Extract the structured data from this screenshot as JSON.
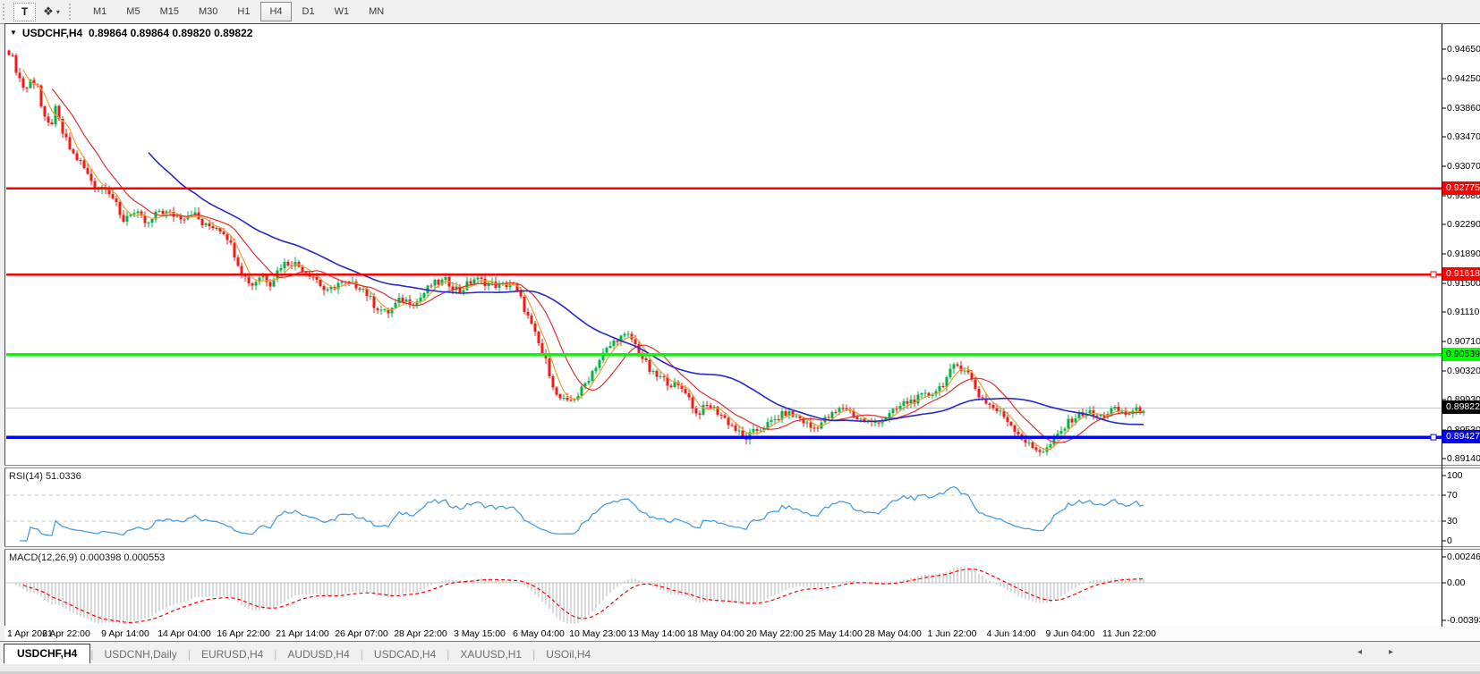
{
  "toolbar": {
    "text_tool": "T",
    "cursor_tool_icon": "crosshair-tool",
    "timeframes": [
      "M1",
      "M5",
      "M15",
      "M30",
      "H1",
      "H4",
      "D1",
      "W1",
      "MN"
    ],
    "active_timeframe": "H4"
  },
  "chart": {
    "title": {
      "collapse_icon": "▼",
      "symbol": "USDCHF,H4",
      "ohlc": "0.89864 0.89864 0.89820 0.89822"
    },
    "price_scale_labels": [
      "0.94650",
      "0.94250",
      "0.93860",
      "0.93470",
      "0.93070",
      "0.92680",
      "0.92290",
      "0.91890",
      "0.91500",
      "0.91110",
      "0.90710",
      "0.90320",
      "0.89930",
      "0.89530",
      "0.89140"
    ],
    "badges": [
      {
        "text": "0.92775",
        "bg": "#ff0000",
        "fg": "#ffffff",
        "price": 0.92775
      },
      {
        "text": "0.91618",
        "bg": "#ff0000",
        "fg": "#ffffff",
        "price": 0.91618
      },
      {
        "text": "0.90539",
        "bg": "#00ff00",
        "fg": "#000000",
        "price": 0.90539
      },
      {
        "text": "0.89822",
        "bg": "#000000",
        "fg": "#ffffff",
        "price": 0.89822
      },
      {
        "text": "0.89427",
        "bg": "#0000ff",
        "fg": "#ffffff",
        "price": 0.89427
      }
    ],
    "rsi_panel": {
      "label": "RSI(14)",
      "value": "51.0336",
      "scale": [
        "100",
        "70",
        "30",
        "0"
      ]
    },
    "macd_panel": {
      "label": "MACD(12,26,9)",
      "values": "0.000398 0.000553",
      "scale": [
        "0.002465",
        "0.00",
        "-0.003935"
      ]
    },
    "date_labels": [
      "1 Apr 2021",
      "6 Apr 22:00",
      "9 Apr 14:00",
      "14 Apr 04:00",
      "16 Apr 22:00",
      "21 Apr 14:00",
      "26 Apr 07:00",
      "28 Apr 22:00",
      "3 May 15:00",
      "6 May 04:00",
      "10 May 23:00",
      "13 May 14:00",
      "18 May 04:00",
      "20 May 22:00",
      "25 May 14:00",
      "28 May 04:00",
      "1 Jun 22:00",
      "4 Jun 14:00",
      "9 Jun 04:00",
      "11 Jun 22:00"
    ]
  },
  "chart_data": {
    "type": "candlestick",
    "symbol": "USDCHF",
    "timeframe": "H4",
    "title": "USDCHF,H4",
    "current_quote": {
      "open": 0.89864,
      "high": 0.89864,
      "low": 0.8982,
      "close": 0.89822
    },
    "x_range": [
      "1 Apr 2021",
      "15 Jun 2021"
    ],
    "y_axis_range": [
      0.891,
      0.948
    ],
    "legend_position": "none",
    "grid": false,
    "horizontal_lines": [
      {
        "price": 0.92775,
        "color": "#ff0000",
        "width": 2.5,
        "handles": []
      },
      {
        "price": 0.91618,
        "color": "#ff0000",
        "width": 2.5,
        "handles": [
          "right"
        ]
      },
      {
        "price": 0.90539,
        "color": "#00ff00",
        "width": 3.5,
        "handles": []
      },
      {
        "price": 0.89427,
        "color": "#0000ff",
        "width": 3.5,
        "handles": [
          "right"
        ]
      }
    ],
    "current_price_line": {
      "price": 0.89822,
      "color": "#c0c0c0"
    },
    "candle_colors": {
      "bull": "#00b44a",
      "bear": "#ee1c1c"
    },
    "price_path": [
      [
        8,
        0.9468
      ],
      [
        14,
        0.9452
      ],
      [
        20,
        0.9431
      ],
      [
        28,
        0.9409
      ],
      [
        35,
        0.9424
      ],
      [
        42,
        0.9418
      ],
      [
        48,
        0.9372
      ],
      [
        56,
        0.936
      ],
      [
        62,
        0.9383
      ],
      [
        70,
        0.9352
      ],
      [
        80,
        0.9326
      ],
      [
        91,
        0.9311
      ],
      [
        100,
        0.9291
      ],
      [
        110,
        0.9278
      ],
      [
        118,
        0.9282
      ],
      [
        128,
        0.9261
      ],
      [
        136,
        0.9232
      ],
      [
        145,
        0.9246
      ],
      [
        155,
        0.9241
      ],
      [
        165,
        0.9227
      ],
      [
        178,
        0.9248
      ],
      [
        192,
        0.9242
      ],
      [
        205,
        0.9239
      ],
      [
        215,
        0.9247
      ],
      [
        228,
        0.9226
      ],
      [
        240,
        0.9228
      ],
      [
        252,
        0.9218
      ],
      [
        262,
        0.919
      ],
      [
        272,
        0.916
      ],
      [
        282,
        0.9148
      ],
      [
        292,
        0.9162
      ],
      [
        302,
        0.9151
      ],
      [
        315,
        0.9176
      ],
      [
        328,
        0.9178
      ],
      [
        340,
        0.9168
      ],
      [
        352,
        0.9158
      ],
      [
        365,
        0.9136
      ],
      [
        378,
        0.915
      ],
      [
        392,
        0.9148
      ],
      [
        404,
        0.9146
      ],
      [
        418,
        0.9121
      ],
      [
        432,
        0.9109
      ],
      [
        448,
        0.9128
      ],
      [
        465,
        0.9124
      ],
      [
        482,
        0.9148
      ],
      [
        498,
        0.9153
      ],
      [
        514,
        0.914
      ],
      [
        530,
        0.9156
      ],
      [
        545,
        0.915
      ],
      [
        560,
        0.9146
      ],
      [
        572,
        0.915
      ],
      [
        582,
        0.9128
      ],
      [
        592,
        0.9098
      ],
      [
        602,
        0.9068
      ],
      [
        612,
        0.9038
      ],
      [
        622,
        0.8998
      ],
      [
        634,
        0.8988
      ],
      [
        648,
        0.9002
      ],
      [
        662,
        0.9032
      ],
      [
        676,
        0.9058
      ],
      [
        690,
        0.9076
      ],
      [
        704,
        0.9079
      ],
      [
        716,
        0.9054
      ],
      [
        728,
        0.9028
      ],
      [
        742,
        0.902
      ],
      [
        755,
        0.9012
      ],
      [
        766,
        0.9006
      ],
      [
        778,
        0.8974
      ],
      [
        792,
        0.8986
      ],
      [
        805,
        0.8974
      ],
      [
        818,
        0.8958
      ],
      [
        832,
        0.894
      ],
      [
        846,
        0.8952
      ],
      [
        864,
        0.8964
      ],
      [
        878,
        0.8976
      ],
      [
        894,
        0.8968
      ],
      [
        908,
        0.8954
      ],
      [
        930,
        0.8973
      ],
      [
        944,
        0.8984
      ],
      [
        958,
        0.8968
      ],
      [
        974,
        0.8961
      ],
      [
        996,
        0.8974
      ],
      [
        1010,
        0.8988
      ],
      [
        1024,
        0.8994
      ],
      [
        1038,
        0.9
      ],
      [
        1052,
        0.9012
      ],
      [
        1068,
        0.904
      ],
      [
        1080,
        0.9034
      ],
      [
        1094,
        0.8999
      ],
      [
        1108,
        0.8984
      ],
      [
        1124,
        0.8969
      ],
      [
        1138,
        0.8948
      ],
      [
        1152,
        0.8929
      ],
      [
        1168,
        0.8924
      ],
      [
        1184,
        0.8948
      ],
      [
        1198,
        0.8968
      ],
      [
        1214,
        0.8977
      ],
      [
        1228,
        0.8969
      ],
      [
        1244,
        0.898
      ],
      [
        1258,
        0.8974
      ],
      [
        1280,
        0.8982
      ]
    ],
    "indicators": {
      "moving_averages": [
        {
          "name": "fast",
          "window": 5,
          "color": "#f0a030",
          "stroke": 1.2
        },
        {
          "name": "medium",
          "window": 13,
          "color": "#e03030",
          "stroke": 1.2
        },
        {
          "name": "slow",
          "window": 40,
          "color": "#2828c8",
          "stroke": 1.6
        }
      ],
      "rsi": {
        "period": 14,
        "current": 51.0336,
        "color": "#4a9de0",
        "levels": [
          30,
          70
        ],
        "range": [
          0,
          100
        ],
        "level_color": "#c8c8c8"
      },
      "macd": {
        "fast": 12,
        "slow": 26,
        "signal": 9,
        "current_macd": 0.000398,
        "current_signal": 0.000553,
        "axis_max": 0.002465,
        "axis_min": -0.003935,
        "histogram_color": "#b4b4b4",
        "signal_color": "#ff0000",
        "zero_line_color": "#c8c8c8"
      }
    }
  },
  "tabs": {
    "items": [
      "USDCHF,H4",
      "USDCNH,Daily",
      "EURUSD,H4",
      "AUDUSD,H4",
      "USDCAD,H4",
      "XAUUSD,H1",
      "USOil,H4"
    ],
    "active": "USDCHF,H4",
    "scroll_left": "◂",
    "scroll_right": "▸"
  }
}
